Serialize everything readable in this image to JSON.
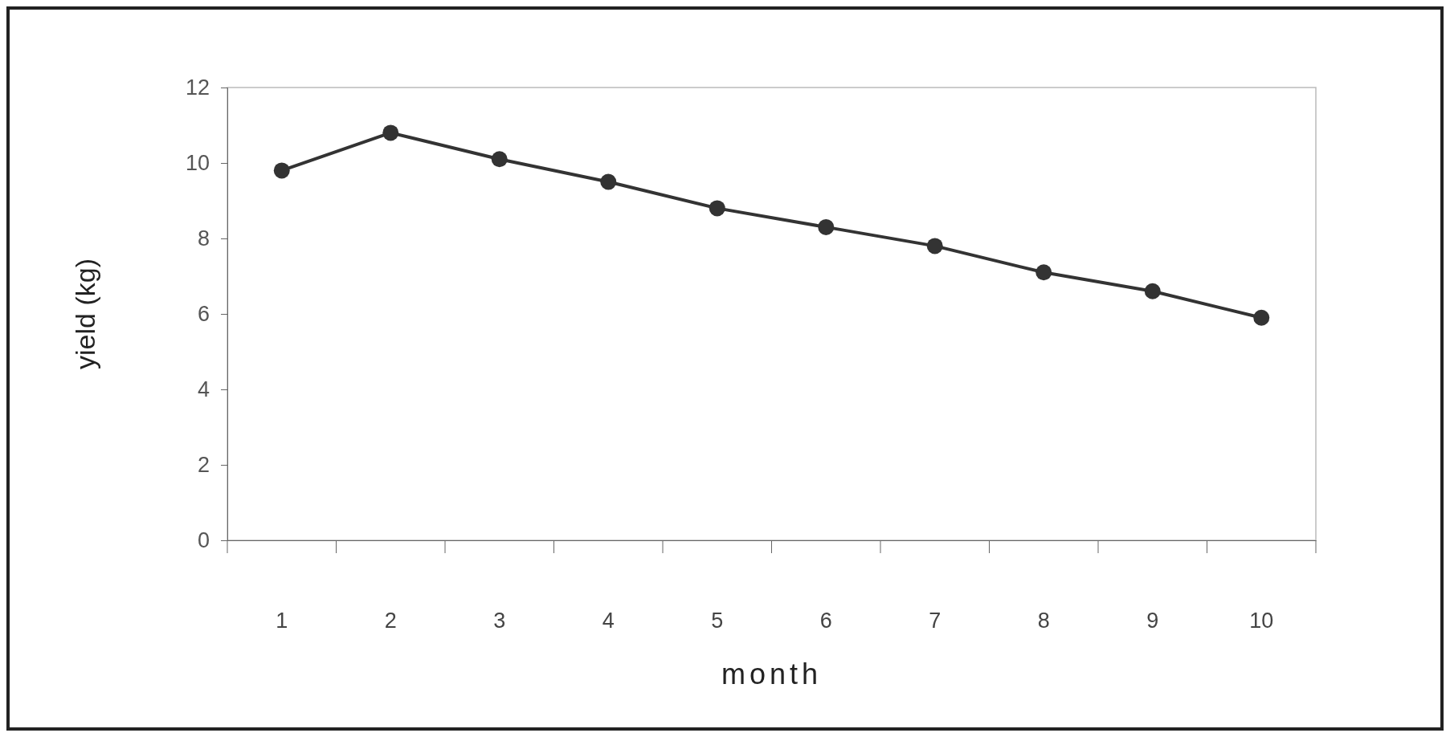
{
  "chart_data": {
    "type": "line",
    "xlabel": "month",
    "ylabel": "yield (kg)",
    "categories": [
      "1",
      "2",
      "3",
      "4",
      "5",
      "6",
      "7",
      "8",
      "9",
      "10"
    ],
    "series": [
      {
        "color": "#333333",
        "values": [
          9.8,
          10.8,
          10.1,
          9.5,
          8.8,
          8.3,
          7.8,
          7.1,
          6.6,
          5.9
        ]
      }
    ],
    "ylim": [
      0,
      12
    ],
    "yticks": [
      0,
      2,
      4,
      6,
      8,
      10,
      12
    ],
    "grid": false,
    "marker": "circle",
    "line_style": "solid"
  }
}
